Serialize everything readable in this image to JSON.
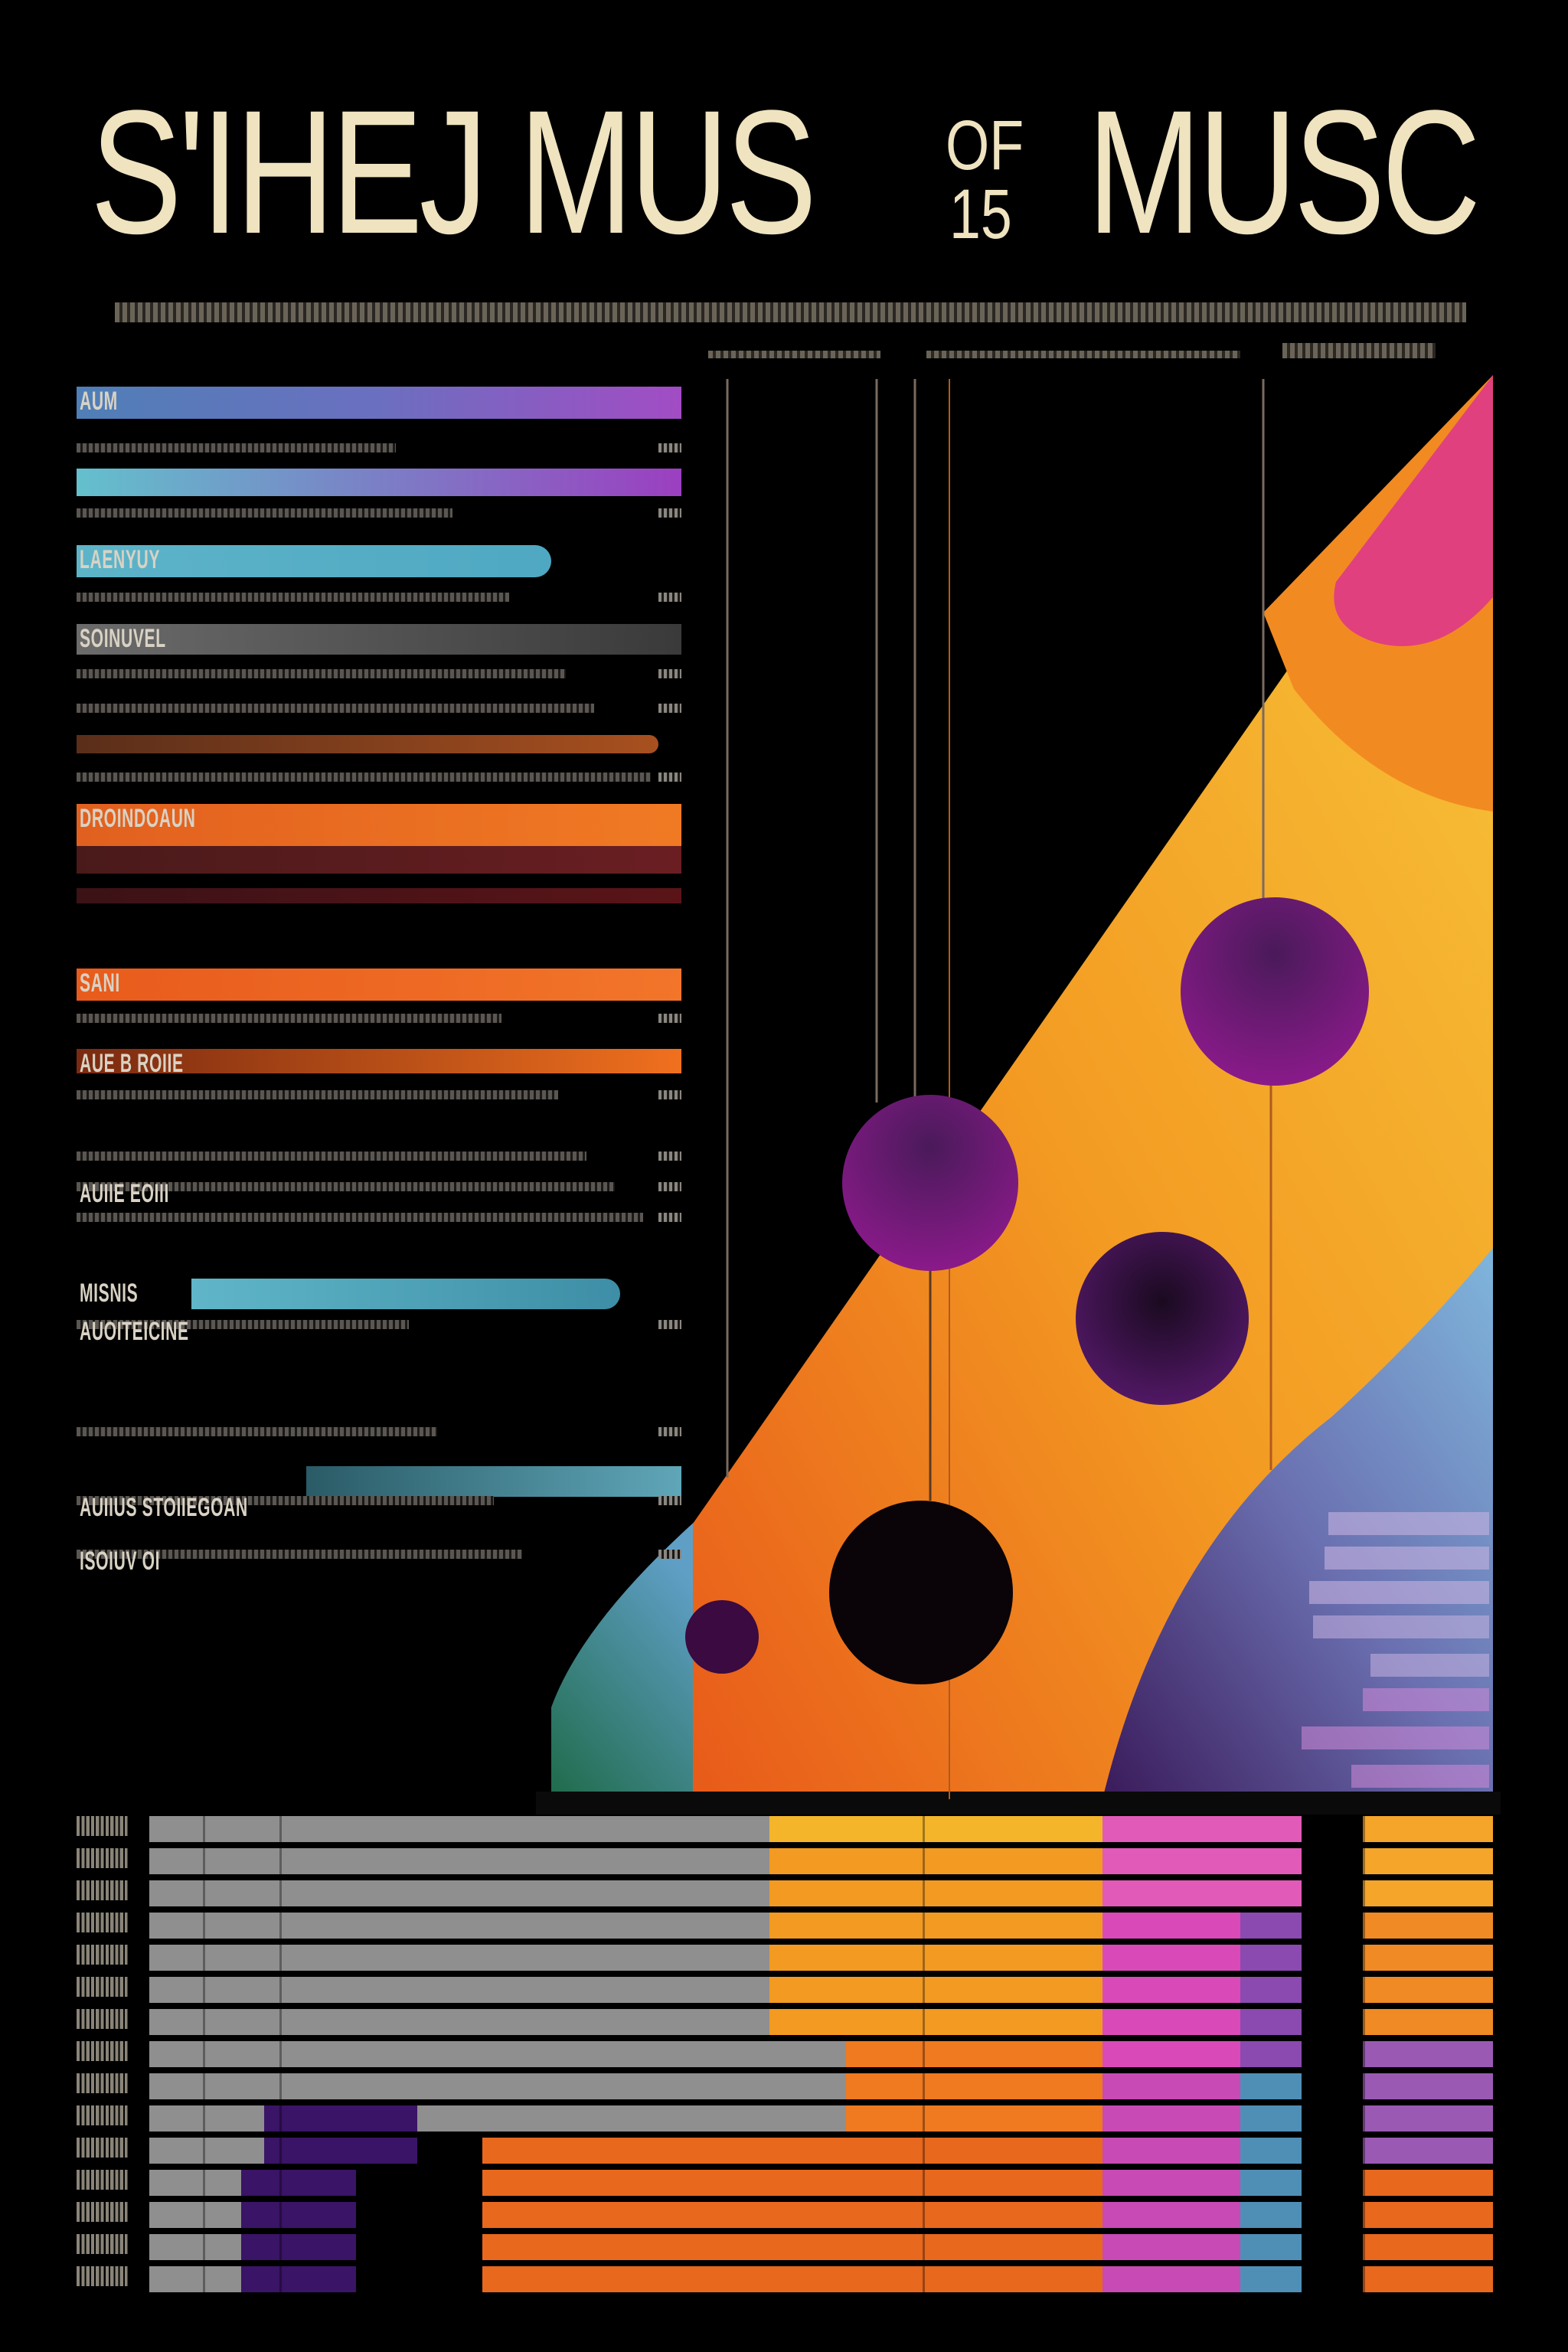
{
  "title": {
    "part1": "S'IHEJ MUS",
    "of": "OF",
    "num": "15",
    "part2": "MUSC"
  },
  "left_rows": [
    {
      "label": "AUM",
      "value": "",
      "bar": [
        100,
        890
      ],
      "color": "linear-gradient(90deg,#4f7fb6,#6b6fc0,#a24cc4)"
    },
    {
      "label": "",
      "value": "",
      "bar": null,
      "color": ""
    },
    {
      "label": "",
      "value": "",
      "bar": [
        100,
        890
      ],
      "color": "linear-gradient(90deg,#63c0cc,#7b7fc6,#9b3fc0)"
    },
    {
      "label": "",
      "value": "",
      "bar": null,
      "color": ""
    },
    {
      "label": "LAENYUY",
      "value": "",
      "bar": [
        100,
        720
      ],
      "color": "linear-gradient(90deg,#5db4c9,#4fa8c2)"
    },
    {
      "label": "",
      "value": "",
      "bar": null,
      "color": ""
    },
    {
      "label": "SOINUVEL",
      "value": "",
      "bar": [
        100,
        890
      ],
      "color": "linear-gradient(90deg,#6b6b6b,#3a3a3a)"
    },
    {
      "label": "",
      "value": "",
      "bar": null,
      "color": ""
    },
    {
      "label": "",
      "value": "",
      "bar": null,
      "color": ""
    },
    {
      "label": "",
      "value": "",
      "bar": [
        100,
        860
      ],
      "color": "linear-gradient(90deg,#5a2e1a,#a8501f)"
    },
    {
      "label": "",
      "value": "",
      "bar": null,
      "color": ""
    },
    {
      "label": "DROINDOAUN",
      "value": "",
      "bar": [
        100,
        890
      ],
      "color": "linear-gradient(90deg,#e2601f,#f07a24)"
    },
    {
      "label": "",
      "value": "",
      "bar": [
        100,
        890
      ],
      "color": "linear-gradient(90deg,#4a1a1a,#6a1e22)"
    },
    {
      "label": "",
      "value": "",
      "bar": [
        100,
        890
      ],
      "color": "linear-gradient(90deg,#3b1216,#5a1418)"
    },
    {
      "label": "SANI",
      "value": "",
      "bar": [
        100,
        890
      ],
      "color": "linear-gradient(90deg,#e85b1c,#f2752a)"
    },
    {
      "label": "",
      "value": "",
      "bar": null,
      "color": ""
    },
    {
      "label": "AUE B ROIIE",
      "value": "",
      "bar": [
        100,
        890
      ],
      "color": "linear-gradient(90deg,#7a2a10,#f0701e)"
    },
    {
      "label": "",
      "value": "",
      "bar": null,
      "color": ""
    },
    {
      "label": "",
      "value": "",
      "bar": null,
      "color": ""
    },
    {
      "label": "AUIIE EOIII",
      "value": "",
      "bar": null,
      "color": ""
    },
    {
      "label": "",
      "value": "",
      "bar": null,
      "color": ""
    },
    {
      "label": "MISNIS",
      "value": "",
      "bar": [
        250,
        810
      ],
      "color": "linear-gradient(90deg,#60b6c8,#3d8ea6)"
    },
    {
      "label": "AUOITEICINE",
      "value": "",
      "bar": null,
      "color": ""
    },
    {
      "label": "",
      "value": "",
      "bar": null,
      "color": ""
    },
    {
      "label": "",
      "value": "",
      "bar": [
        400,
        890
      ],
      "color": "linear-gradient(90deg,#2a5b66,#5fa6b8)"
    },
    {
      "label": "AUIIUS STOIIEGOAN",
      "value": "",
      "bar": null,
      "color": ""
    },
    {
      "label": "ISOIUV OI",
      "value": "",
      "bar": null,
      "color": ""
    }
  ],
  "top_tags": [],
  "bottom_labels": [],
  "grid_rows": [
    "",
    "",
    "",
    "",
    "",
    "",
    "",
    "",
    "",
    "",
    "",
    "",
    "",
    "",
    ""
  ],
  "colors": {
    "cream": "#efe3c0",
    "orange": "#f07a24",
    "yellow": "#f7b52a",
    "pink": "#e0467e",
    "purple": "#5b1a66",
    "blue": "#5f99c9",
    "green": "#2f7f6a"
  }
}
